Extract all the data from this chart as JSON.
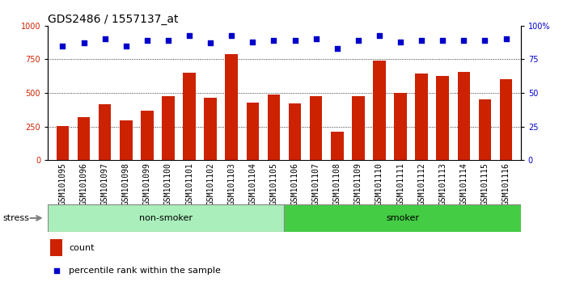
{
  "title": "GDS2486 / 1557137_at",
  "samples": [
    "GSM101095",
    "GSM101096",
    "GSM101097",
    "GSM101098",
    "GSM101099",
    "GSM101100",
    "GSM101101",
    "GSM101102",
    "GSM101103",
    "GSM101104",
    "GSM101105",
    "GSM101106",
    "GSM101107",
    "GSM101108",
    "GSM101109",
    "GSM101110",
    "GSM101111",
    "GSM101112",
    "GSM101113",
    "GSM101114",
    "GSM101115",
    "GSM101116"
  ],
  "counts": [
    255,
    320,
    415,
    295,
    370,
    475,
    650,
    465,
    790,
    430,
    490,
    420,
    475,
    210,
    475,
    740,
    500,
    645,
    625,
    655,
    455,
    600
  ],
  "percentile_ranks": [
    85,
    87,
    90,
    85,
    89,
    89,
    93,
    87,
    93,
    88,
    89,
    89,
    90,
    83,
    89,
    93,
    88,
    89,
    89,
    89,
    89,
    90
  ],
  "bar_color": "#CC2200",
  "dot_color": "#0000CC",
  "non_smoker_count": 11,
  "non_smoker_color": "#AAEEBB",
  "smoker_color": "#44CC44",
  "group_label_nonsmoker": "non-smoker",
  "group_label_smoker": "smoker",
  "stress_label": "stress",
  "ylim_left": [
    0,
    1000
  ],
  "ylim_right": [
    0,
    100
  ],
  "left_yticks": [
    0,
    250,
    500,
    750,
    1000
  ],
  "right_yticks": [
    0,
    25,
    50,
    75,
    100
  ],
  "grid_values": [
    250,
    500,
    750
  ],
  "title_fontsize": 10,
  "tick_fontsize": 7,
  "legend_count_label": "count",
  "legend_pct_label": "percentile rank within the sample",
  "plot_bg_color": "#FFFFFF",
  "xtick_bg_color": "#D8D8D8"
}
